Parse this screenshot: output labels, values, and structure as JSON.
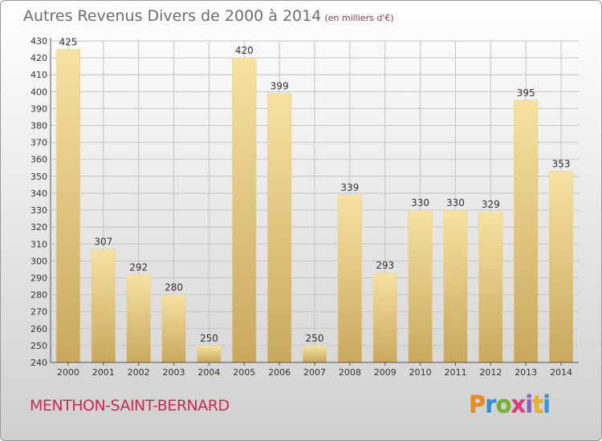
{
  "title": "Autres Revenus Divers de 2000 à 2014",
  "subtitle": "(en milliers d'€)",
  "place": "MENTHON-SAINT-BERNARD",
  "logo": {
    "letters": [
      "P",
      "r",
      "o",
      "x",
      "i",
      "t",
      "i"
    ],
    "colors": [
      "#f08a1c",
      "#2f8fd8",
      "#74b72a",
      "#e23b7a",
      "#8a5fc3",
      "#f0b21c",
      "#2f9ad8"
    ]
  },
  "colors": {
    "bar_top": "#f7e2a0",
    "bar_bottom": "#c9a85e",
    "grid": "#c4c4c4",
    "label": "#333333"
  },
  "chart_data": {
    "type": "bar",
    "categories": [
      "2000",
      "2001",
      "2002",
      "2003",
      "2004",
      "2005",
      "2006",
      "2007",
      "2008",
      "2009",
      "2010",
      "2011",
      "2012",
      "2013",
      "2014"
    ],
    "values": [
      425,
      307,
      292,
      280,
      250,
      420,
      399,
      250,
      339,
      293,
      330,
      330,
      329,
      395,
      353
    ],
    "ylim": [
      240,
      430
    ],
    "ytick_step": 10,
    "grid": true
  }
}
